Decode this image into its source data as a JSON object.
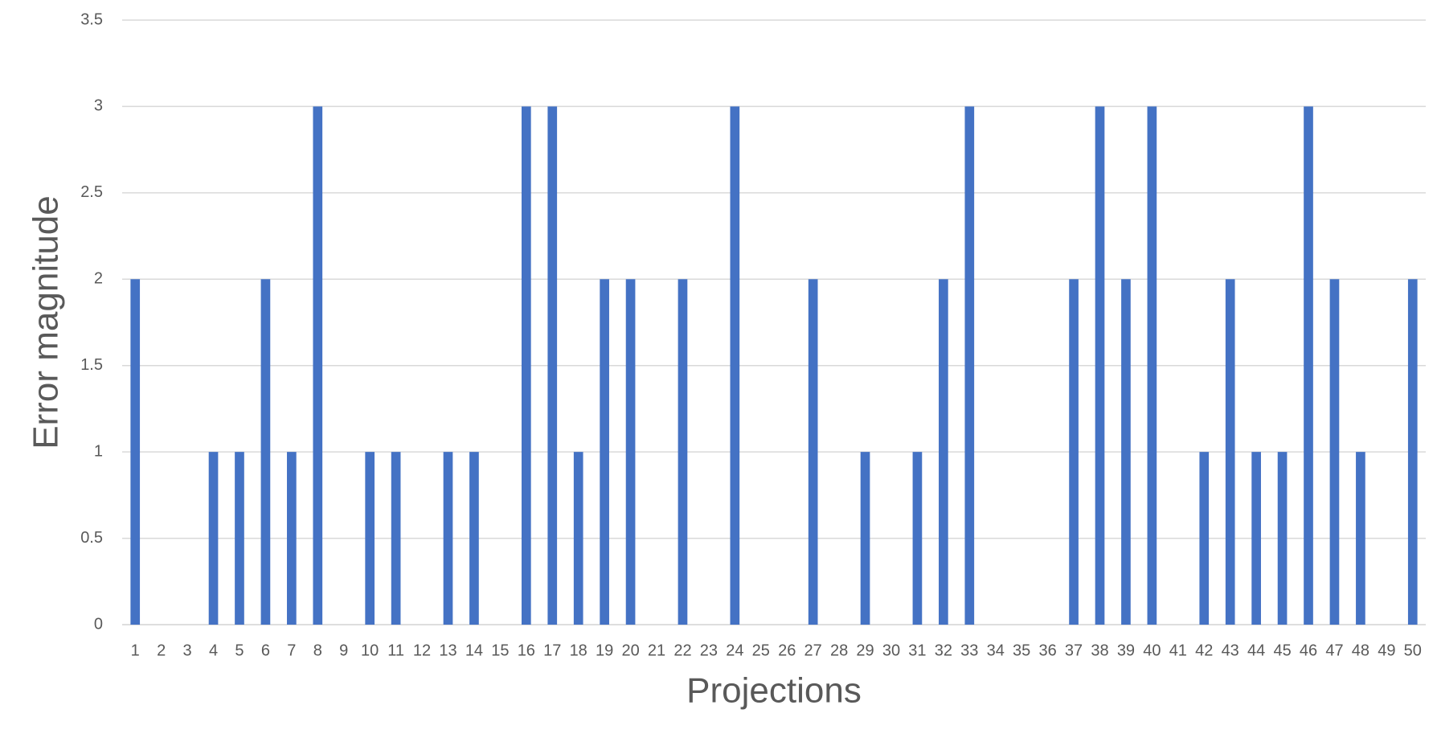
{
  "chart_data": {
    "type": "bar",
    "x_label": "Projections",
    "y_label": "Error magnitude",
    "categories": [
      "1",
      "2",
      "3",
      "4",
      "5",
      "6",
      "7",
      "8",
      "9",
      "10",
      "11",
      "12",
      "13",
      "14",
      "15",
      "16",
      "17",
      "18",
      "19",
      "20",
      "21",
      "22",
      "23",
      "24",
      "25",
      "26",
      "27",
      "28",
      "29",
      "30",
      "31",
      "32",
      "33",
      "34",
      "35",
      "36",
      "37",
      "38",
      "39",
      "40",
      "41",
      "42",
      "43",
      "44",
      "45",
      "46",
      "47",
      "48",
      "49",
      "50"
    ],
    "values": [
      2,
      0,
      0,
      1,
      1,
      2,
      1,
      3,
      0,
      1,
      1,
      0,
      1,
      1,
      0,
      3,
      3,
      1,
      2,
      2,
      0,
      2,
      0,
      3,
      0,
      0,
      2,
      0,
      1,
      0,
      1,
      2,
      3,
      0,
      0,
      0,
      2,
      3,
      2,
      3,
      0,
      1,
      2,
      1,
      1,
      3,
      2,
      1,
      0,
      2
    ],
    "color": "#4472c4",
    "ylim": [
      0,
      3.5
    ],
    "yticks": [
      0,
      0.5,
      1,
      1.5,
      2,
      2.5,
      3,
      3.5
    ],
    "grid": true
  }
}
